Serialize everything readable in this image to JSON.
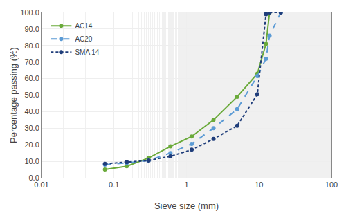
{
  "chart_data": {
    "type": "line",
    "xlabel": "Sieve size (mm)",
    "ylabel": "Percentage passing (%)",
    "log": "x",
    "grid": true,
    "legend": "upper left",
    "xlim": [
      0.01,
      100
    ],
    "xticks": [
      0.01,
      0.1,
      1,
      10,
      100
    ],
    "ylim": [
      0.0,
      100.0
    ],
    "yticks": [
      {
        "value": 0.0,
        "label": "0.0"
      },
      {
        "value": 10.0,
        "label": "10.0"
      },
      {
        "value": 20.0,
        "label": "20.0"
      },
      {
        "value": 30.0,
        "label": "30.0"
      },
      {
        "value": 40.0,
        "label": "40.0"
      },
      {
        "value": 50.0,
        "label": "50.0"
      },
      {
        "value": 60.0,
        "label": "60.0"
      },
      {
        "value": 70.0,
        "label": "70.0"
      },
      {
        "value": 80.0,
        "label": "80.0"
      },
      {
        "value": 90.0,
        "label": "90.0"
      },
      {
        "value": 100.0,
        "label": "100.0"
      }
    ],
    "series": [
      {
        "name": "AC14",
        "color": "#6aaa3a",
        "line_style": "solid",
        "marker": "circle",
        "x": [
          0.075,
          0.15,
          0.3,
          0.6,
          1.18,
          2.36,
          5.0,
          9.5,
          12.5,
          14.0
        ],
        "values": [
          5.0,
          7.0,
          12.0,
          19.0,
          25.0,
          35.0,
          49.0,
          63.0,
          81.0,
          100.0
        ]
      },
      {
        "name": "AC20",
        "color": "#5b9bd5",
        "line_style": "dashed",
        "marker": "circle",
        "x": [
          0.075,
          0.15,
          0.3,
          0.6,
          1.18,
          2.36,
          5.0,
          9.5,
          12.5,
          14.0,
          20.0
        ],
        "values": [
          8.0,
          9.0,
          10.5,
          15.0,
          20.5,
          30.0,
          41.5,
          61.5,
          72.0,
          86.0,
          100.0
        ]
      },
      {
        "name": "SMA 14",
        "color": "#1f3d7a",
        "line_style": "dashed",
        "marker": "circle",
        "x": [
          0.075,
          0.15,
          0.3,
          0.6,
          1.18,
          2.36,
          5.0,
          9.5,
          12.5,
          14.0,
          20.0
        ],
        "values": [
          8.5,
          9.5,
          10.5,
          13.0,
          17.0,
          23.5,
          31.5,
          50.5,
          99.0,
          100.0,
          100.0
        ]
      }
    ]
  }
}
